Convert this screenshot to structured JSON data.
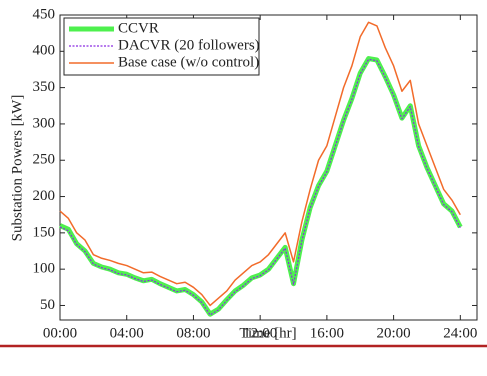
{
  "chart_data": {
    "type": "line",
    "xlabel": "Time [hr]",
    "ylabel": "Substation Powers [kW]",
    "x": [
      0,
      0.5,
      1,
      1.5,
      2,
      2.5,
      3,
      3.5,
      4,
      4.5,
      5,
      5.5,
      6,
      6.5,
      7,
      7.5,
      8,
      8.5,
      9,
      9.5,
      10,
      10.5,
      11,
      11.5,
      12,
      12.5,
      13,
      13.5,
      14,
      14.5,
      15,
      15.5,
      16,
      16.5,
      17,
      17.5,
      18,
      18.5,
      19,
      19.5,
      20,
      20.5,
      21,
      21.5,
      22,
      22.5,
      23,
      23.5,
      24
    ],
    "series": [
      {
        "name": "CCVR",
        "color": "#4ef04e",
        "values": [
          160,
          155,
          135,
          125,
          108,
          103,
          100,
          95,
          93,
          88,
          84,
          86,
          80,
          75,
          70,
          72,
          65,
          55,
          38,
          45,
          58,
          70,
          78,
          88,
          92,
          100,
          115,
          130,
          80,
          140,
          185,
          215,
          235,
          270,
          305,
          335,
          370,
          390,
          388,
          365,
          340,
          308,
          325,
          270,
          240,
          215,
          190,
          180,
          158
        ]
      },
      {
        "name": "DACVR (20 followers)",
        "color": "#8a2be2",
        "values": [
          158,
          153,
          134,
          124,
          107,
          102,
          99,
          94,
          92,
          87,
          83,
          85,
          79,
          74,
          69,
          71,
          64,
          54,
          37,
          44,
          57,
          69,
          77,
          87,
          91,
          99,
          114,
          129,
          79,
          139,
          184,
          214,
          234,
          269,
          304,
          334,
          369,
          389,
          387,
          364,
          339,
          307,
          324,
          269,
          239,
          214,
          189,
          179,
          157
        ]
      },
      {
        "name": "Base case (w/o control)",
        "color": "#f26b2a",
        "values": [
          180,
          170,
          150,
          140,
          120,
          115,
          112,
          108,
          105,
          100,
          95,
          96,
          90,
          85,
          80,
          82,
          75,
          65,
          50,
          60,
          70,
          85,
          95,
          105,
          110,
          120,
          135,
          150,
          110,
          165,
          210,
          250,
          270,
          310,
          350,
          380,
          420,
          440,
          435,
          405,
          380,
          345,
          360,
          300,
          270,
          240,
          210,
          195,
          175
        ]
      }
    ],
    "xlim": [
      0,
      25
    ],
    "ylim": [
      30,
      450
    ],
    "xticks": [
      {
        "value": 0,
        "label": "00:00"
      },
      {
        "value": 4,
        "label": "04:00"
      },
      {
        "value": 8,
        "label": "08:00"
      },
      {
        "value": 12,
        "label": "12:00"
      },
      {
        "value": 16,
        "label": "16:00"
      },
      {
        "value": 20,
        "label": "20:00"
      },
      {
        "value": 24,
        "label": "24:00"
      }
    ],
    "yticks": [
      50,
      100,
      150,
      200,
      250,
      300,
      350,
      400,
      450
    ],
    "legend": "upper left"
  }
}
